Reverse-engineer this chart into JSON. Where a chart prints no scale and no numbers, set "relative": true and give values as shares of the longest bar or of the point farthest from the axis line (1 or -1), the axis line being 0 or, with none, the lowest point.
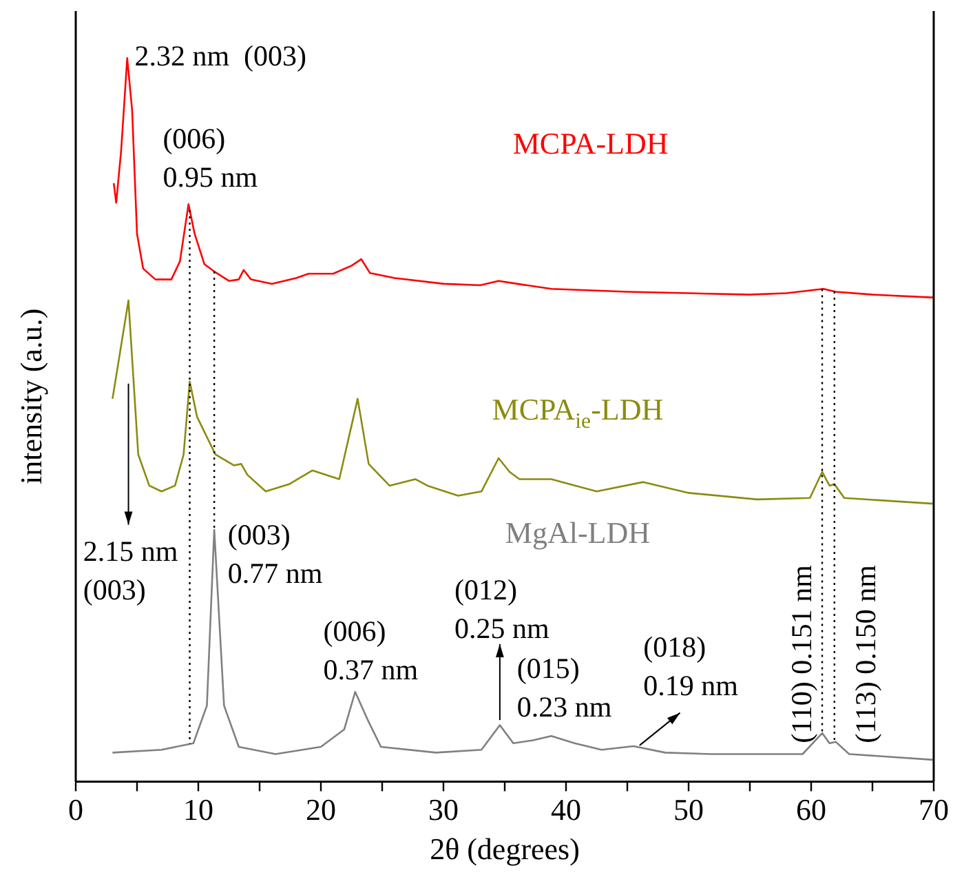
{
  "chart_data": {
    "type": "line",
    "relative": true,
    "xlabel": "2θ (degrees)",
    "ylabel": "intensity (a.u.)",
    "xlim": [
      0,
      70
    ],
    "xticks": [
      0,
      {
        "value": 5,
        "label": null
      },
      10,
      {
        "value": 15,
        "label": null
      },
      20,
      {
        "value": 25,
        "label": null
      },
      30,
      {
        "value": 35,
        "label": null
      },
      40,
      {
        "value": 45,
        "label": null
      },
      50,
      {
        "value": 55,
        "label": null
      },
      60,
      {
        "value": 65,
        "label": null
      },
      70
    ],
    "grid": false,
    "legend": false,
    "marker": "none",
    "line_style": "solid",
    "series": [
      {
        "name": "MCPA-LDH",
        "color": "#ff0000",
        "x": [
          3.1,
          3.3,
          3.7,
          4.2,
          4.6,
          5.0,
          5.5,
          6.5,
          7.8,
          8.5,
          9.2,
          9.7,
          10.5,
          11.3,
          12.5,
          13.3,
          13.7,
          14.3,
          16,
          18,
          19,
          21,
          22.5,
          23.3,
          24,
          26,
          30,
          33,
          34.5,
          36,
          38.8,
          45,
          50,
          55,
          58,
          61,
          62,
          65,
          70
        ],
        "values": [
          0.827,
          0.8,
          0.871,
          1,
          0.928,
          0.757,
          0.709,
          0.694,
          0.694,
          0.719,
          0.798,
          0.757,
          0.715,
          0.705,
          0.692,
          0.694,
          0.707,
          0.694,
          0.688,
          0.696,
          0.702,
          0.702,
          0.713,
          0.722,
          0.703,
          0.696,
          0.688,
          0.686,
          0.692,
          0.688,
          0.681,
          0.677,
          0.675,
          0.673,
          0.675,
          0.681,
          0.677,
          0.673,
          0.669
        ]
      },
      {
        "name": "MCPA$_{ie}$-LDH",
        "color": "#8b8b0f",
        "x": [
          3.0,
          4.3,
          5.1,
          6.0,
          7.0,
          8.1,
          8.8,
          9.3,
          9.9,
          11.4,
          12.9,
          13.5,
          14.0,
          15.5,
          17.4,
          19.3,
          21.5,
          23.0,
          23.9,
          25.6,
          27.7,
          28.7,
          31.2,
          33.1,
          34.5,
          35.4,
          36.2,
          38.8,
          42.5,
          46.3,
          50.0,
          55.6,
          59.9,
          60.9,
          61.5,
          61.9,
          62.7,
          70
        ],
        "values": [
          0.529,
          0.665,
          0.452,
          0.409,
          0.401,
          0.409,
          0.452,
          0.553,
          0.504,
          0.452,
          0.437,
          0.439,
          0.424,
          0.401,
          0.411,
          0.43,
          0.418,
          0.529,
          0.439,
          0.409,
          0.418,
          0.409,
          0.395,
          0.401,
          0.447,
          0.428,
          0.418,
          0.418,
          0.401,
          0.414,
          0.399,
          0.39,
          0.392,
          0.428,
          0.409,
          0.411,
          0.392,
          0.384
        ]
      },
      {
        "name": "MgAl-LDH",
        "color": "#808080",
        "x": [
          3.0,
          7.0,
          9.6,
          10.7,
          11.3,
          12.1,
          13.3,
          16.3,
          20.0,
          21.9,
          22.8,
          23.8,
          24.9,
          29.4,
          33.1,
          34.6,
          35.7,
          37.3,
          38.8,
          40.7,
          42.9,
          45.5,
          48.1,
          51.9,
          59.3,
          60.9,
          61.5,
          62.0,
          63.1,
          70
        ],
        "values": [
          0.04,
          0.044,
          0.053,
          0.105,
          0.348,
          0.105,
          0.048,
          0.038,
          0.048,
          0.072,
          0.124,
          0.086,
          0.048,
          0.04,
          0.044,
          0.078,
          0.053,
          0.057,
          0.063,
          0.053,
          0.044,
          0.049,
          0.04,
          0.038,
          0.038,
          0.067,
          0.053,
          0.055,
          0.038,
          0.03
        ]
      }
    ],
    "ref_lines": [
      {
        "axis": "x",
        "value": 9.3,
        "color": "#000000",
        "line_style": "dotted"
      },
      {
        "axis": "x",
        "value": 11.3,
        "color": "#000000",
        "line_style": "dotted"
      },
      {
        "axis": "x",
        "value": 60.9,
        "color": "#000000",
        "line_style": "dotted"
      },
      {
        "axis": "x",
        "value": 61.9,
        "color": "#000000",
        "line_style": "dotted"
      }
    ],
    "annotations": [
      "2.32 nm  (003)",
      "(006)\n0.95 nm",
      "2.15 nm\n(003)",
      "(003)\n0.77 nm",
      "(006)\n0.37 nm",
      "(012)\n0.25 nm",
      "(015)\n0.23 nm",
      "(018)\n0.19 nm",
      "(110) 0.151 nm",
      "(113) 0.150 nm"
    ]
  }
}
